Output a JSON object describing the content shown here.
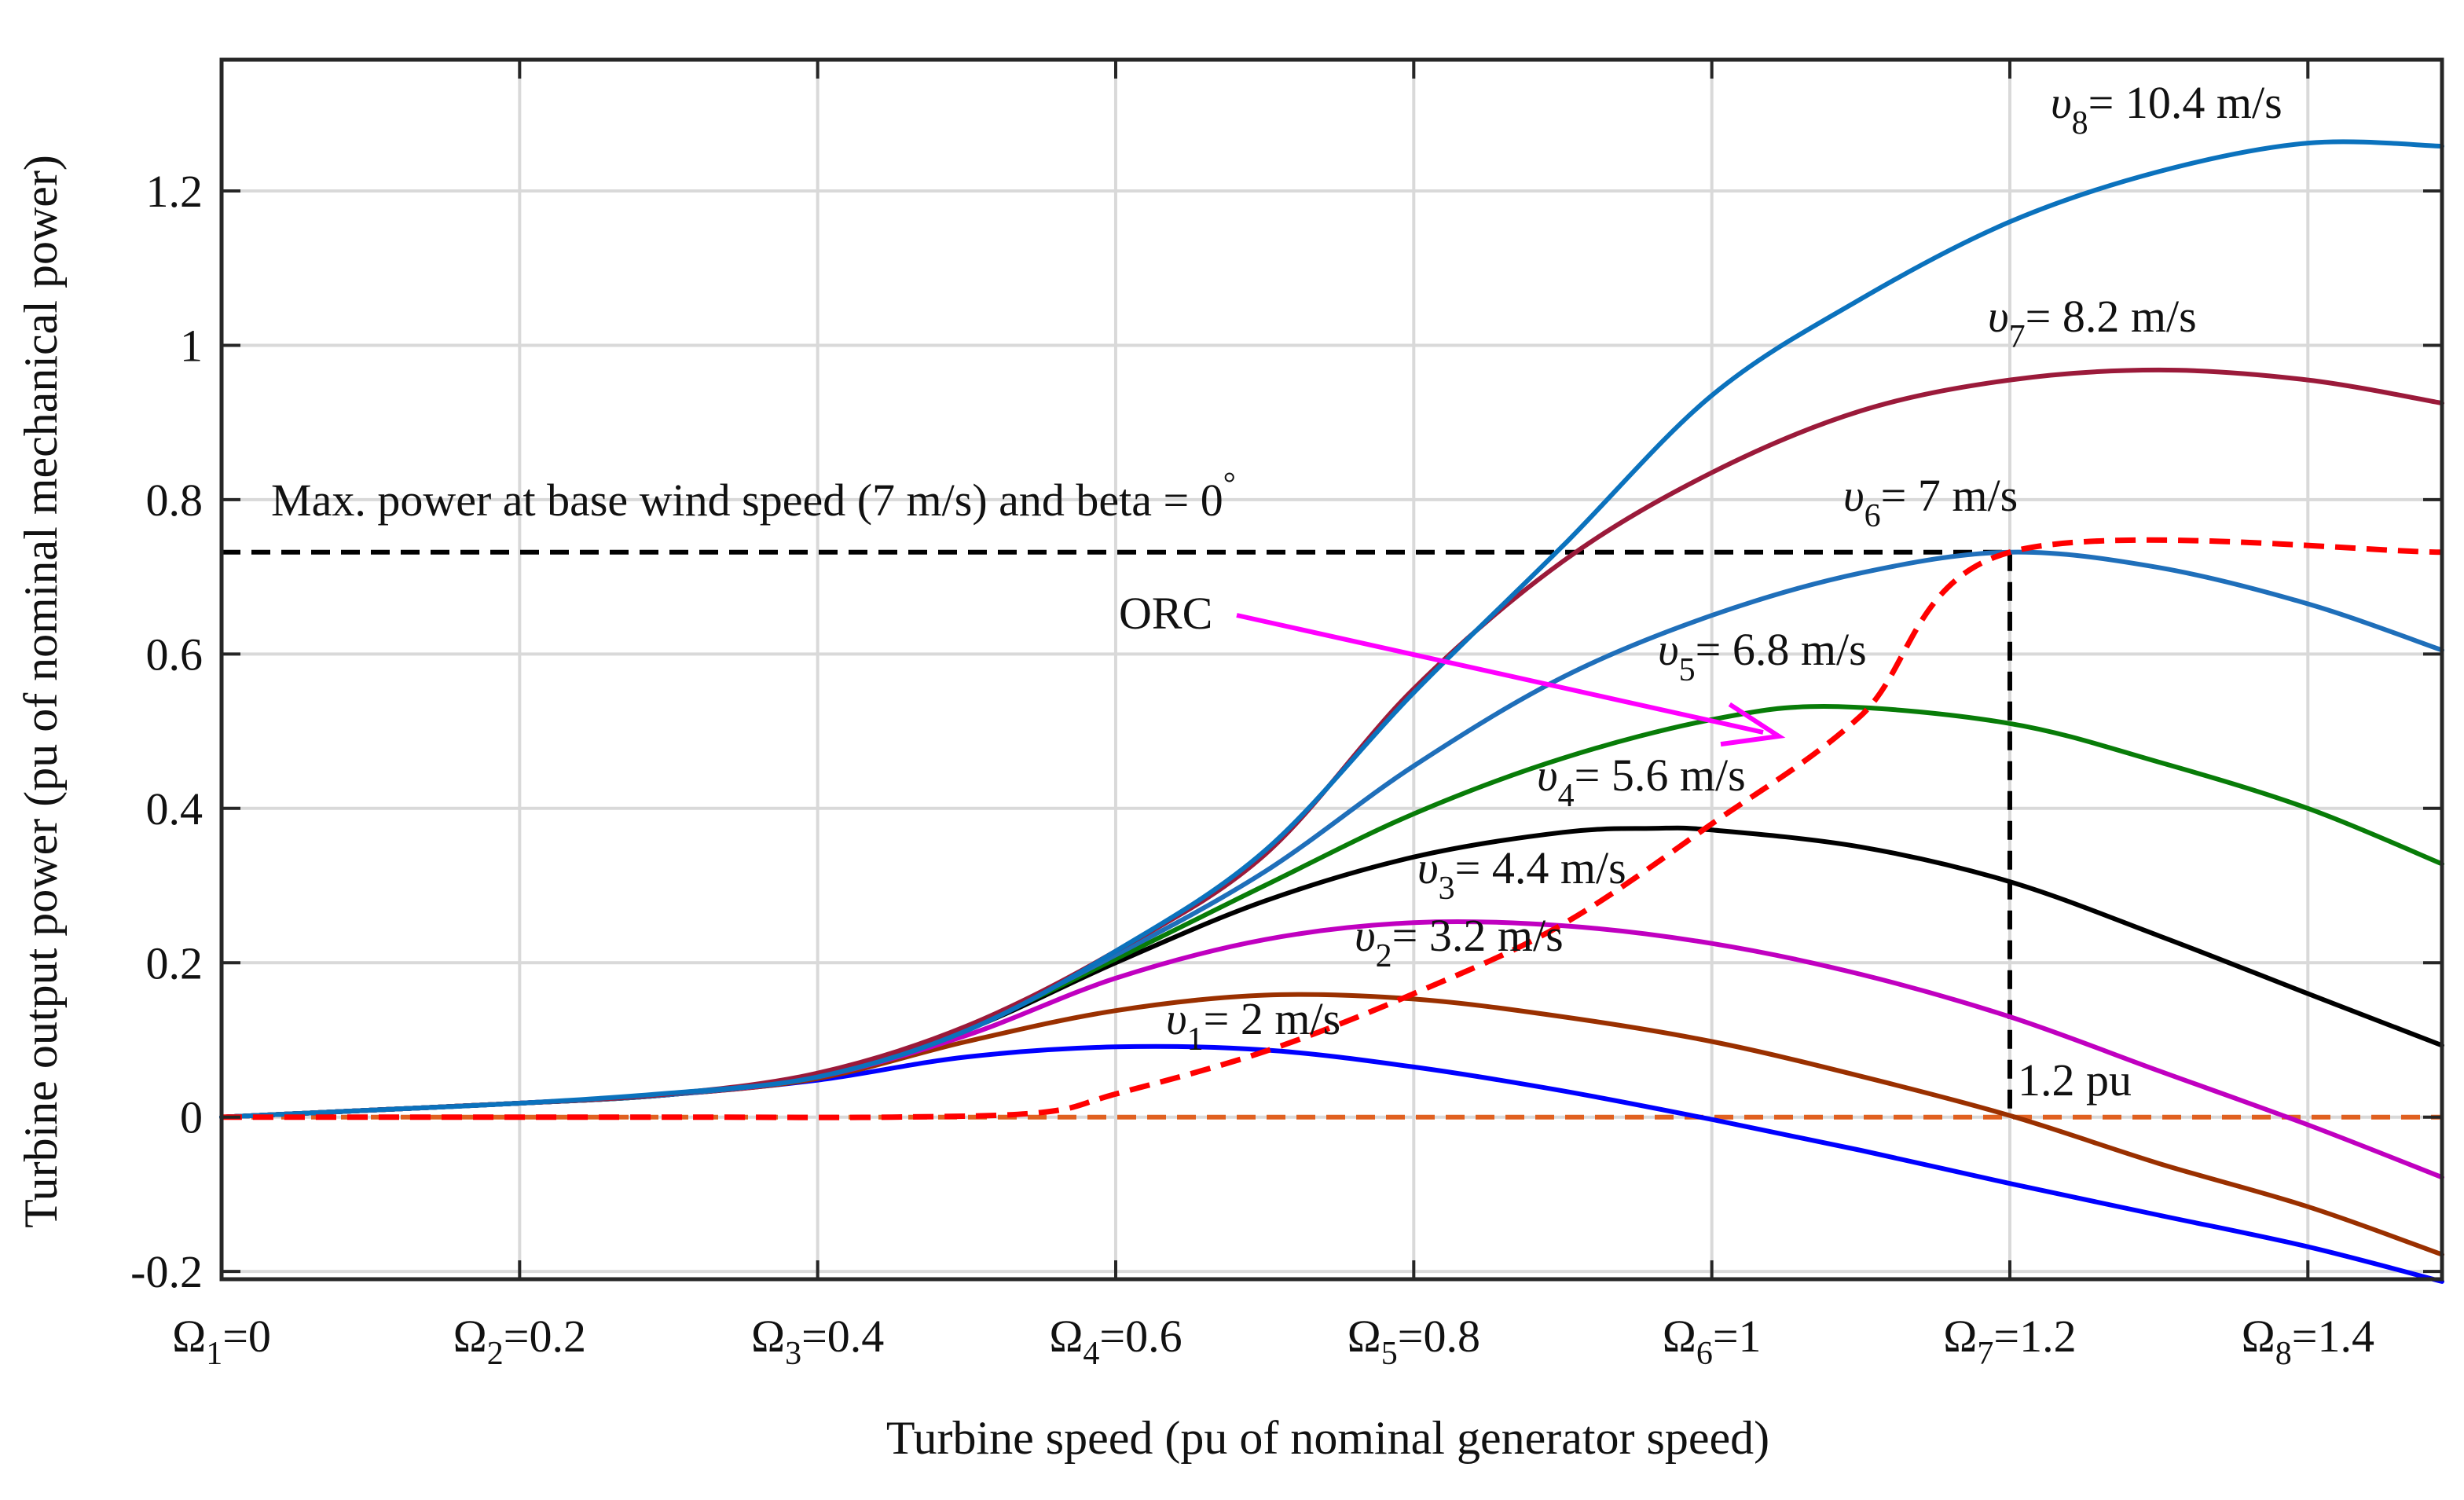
{
  "chart_data": {
    "type": "line",
    "title": "",
    "xlabel": "Turbine speed  (pu of nominal generator speed)",
    "ylabel": "Turbine output power (pu of nominal mechanical power)",
    "xlim": [
      0,
      1.49
    ],
    "ylim": [
      -0.21,
      1.37
    ],
    "grid": true,
    "x_ticks": [
      {
        "value": 0,
        "sym": "Ω",
        "sub": "1",
        "text": "=0"
      },
      {
        "value": 0.2,
        "sym": "Ω",
        "sub": "2",
        "text": "=0.2"
      },
      {
        "value": 0.4,
        "sym": "Ω",
        "sub": "3",
        "text": "=0.4"
      },
      {
        "value": 0.6,
        "sym": "Ω",
        "sub": "4",
        "text": "=0.6"
      },
      {
        "value": 0.8,
        "sym": "Ω",
        "sub": "5",
        "text": "=0.8"
      },
      {
        "value": 1.0,
        "sym": "Ω",
        "sub": "6",
        "text": "=1"
      },
      {
        "value": 1.2,
        "sym": "Ω",
        "sub": "7",
        "text": "=1.2"
      },
      {
        "value": 1.4,
        "sym": "Ω",
        "sub": "8",
        "text": "=1.4"
      }
    ],
    "y_ticks": [
      {
        "value": -0.2,
        "label": "-0.2"
      },
      {
        "value": 0,
        "label": "0"
      },
      {
        "value": 0.2,
        "label": "0.2"
      },
      {
        "value": 0.4,
        "label": "0.4"
      },
      {
        "value": 0.6,
        "label": "0.6"
      },
      {
        "value": 0.8,
        "label": "0.8"
      },
      {
        "value": 1.0,
        "label": "1"
      },
      {
        "value": 1.2,
        "label": "1.2"
      }
    ],
    "series": [
      {
        "name": "v1 = 2 m/s",
        "sym": "υ",
        "sub": "1",
        "text": "= 2 m/s",
        "color": "#0000ff",
        "x": [
          0,
          0.1,
          0.2,
          0.3,
          0.4,
          0.5,
          0.6,
          0.7,
          0.8,
          0.9,
          1.0,
          1.1,
          1.2,
          1.3,
          1.4,
          1.49
        ],
        "y": [
          0,
          0.009,
          0.018,
          0.029,
          0.048,
          0.078,
          0.091,
          0.087,
          0.065,
          0.034,
          -0.003,
          -0.043,
          -0.086,
          -0.127,
          -0.168,
          -0.213
        ]
      },
      {
        "name": "v2 = 3.2 m/s",
        "sym": "υ",
        "sub": "2",
        "text": "= 3.2 m/s",
        "color": "#9a3000",
        "x": [
          0,
          0.1,
          0.2,
          0.3,
          0.4,
          0.5,
          0.6,
          0.7,
          0.8,
          0.9,
          1.0,
          1.1,
          1.2,
          1.3,
          1.4,
          1.49
        ],
        "y": [
          0,
          0.009,
          0.018,
          0.029,
          0.05,
          0.098,
          0.138,
          0.158,
          0.153,
          0.13,
          0.098,
          0.053,
          0.002,
          -0.06,
          -0.116,
          -0.178
        ]
      },
      {
        "name": "v3 = 4.4 m/s",
        "sym": "υ",
        "sub": "3",
        "text": "= 4.4 m/s",
        "color": "#c000c0",
        "x": [
          0,
          0.1,
          0.2,
          0.3,
          0.4,
          0.5,
          0.6,
          0.7,
          0.8,
          0.9,
          1.0,
          1.1,
          1.2,
          1.3,
          1.4,
          1.49
        ],
        "y": [
          0,
          0.009,
          0.018,
          0.029,
          0.052,
          0.106,
          0.18,
          0.23,
          0.252,
          0.248,
          0.225,
          0.185,
          0.13,
          0.06,
          -0.01,
          -0.078
        ]
      },
      {
        "name": "v4 = 5.6 m/s",
        "sym": "υ",
        "sub": "4",
        "text": "= 5.6 m/s",
        "color": "#000000",
        "x": [
          0,
          0.1,
          0.2,
          0.3,
          0.4,
          0.5,
          0.6,
          0.7,
          0.8,
          0.9,
          0.96,
          1.0,
          1.1,
          1.2,
          1.3,
          1.4,
          1.49
        ],
        "y": [
          0,
          0.009,
          0.018,
          0.029,
          0.054,
          0.113,
          0.2,
          0.28,
          0.337,
          0.369,
          0.374,
          0.372,
          0.35,
          0.305,
          0.235,
          0.16,
          0.093
        ]
      },
      {
        "name": "v5 = 6.8 m/s",
        "sym": "υ",
        "sub": "5",
        "text": "= 6.8 m/s",
        "color": "#087c08",
        "x": [
          0,
          0.1,
          0.2,
          0.3,
          0.4,
          0.5,
          0.6,
          0.7,
          0.8,
          0.9,
          1.0,
          1.08,
          1.2,
          1.3,
          1.4,
          1.49
        ],
        "y": [
          0,
          0.009,
          0.018,
          0.029,
          0.054,
          0.115,
          0.205,
          0.3,
          0.393,
          0.465,
          0.515,
          0.532,
          0.51,
          0.46,
          0.4,
          0.328
        ]
      },
      {
        "name": "v6 = 7 m/s",
        "sym": "υ",
        "sub": "6",
        "text": "= 7 m/s",
        "color": "#1f6fba",
        "x": [
          0,
          0.1,
          0.2,
          0.3,
          0.4,
          0.5,
          0.6,
          0.7,
          0.8,
          0.9,
          1.0,
          1.1,
          1.2,
          1.3,
          1.4,
          1.49
        ],
        "y": [
          0,
          0.009,
          0.018,
          0.029,
          0.054,
          0.116,
          0.21,
          0.318,
          0.455,
          0.57,
          0.65,
          0.705,
          0.732,
          0.712,
          0.665,
          0.605
        ]
      },
      {
        "name": "v7 = 8.2 m/s",
        "sym": "υ",
        "sub": "7",
        "text": "= 8.2 m/s",
        "color": "#9b1a3a",
        "x": [
          0,
          0.1,
          0.2,
          0.3,
          0.4,
          0.5,
          0.6,
          0.7,
          0.8,
          0.9,
          1.0,
          1.1,
          1.2,
          1.3,
          1.4,
          1.49
        ],
        "y": [
          0,
          0.009,
          0.018,
          0.03,
          0.057,
          0.118,
          0.215,
          0.34,
          0.555,
          0.72,
          0.835,
          0.915,
          0.955,
          0.968,
          0.955,
          0.925
        ]
      },
      {
        "name": "v8 = 10.4 m/s",
        "sym": "υ",
        "sub": "8",
        "text": "= 10.4 m/s",
        "color": "#0b72bd",
        "x": [
          0,
          0.1,
          0.2,
          0.3,
          0.4,
          0.5,
          0.6,
          0.7,
          0.8,
          0.9,
          1.0,
          1.1,
          1.2,
          1.3,
          1.4,
          1.49
        ],
        "y": [
          0,
          0.009,
          0.018,
          0.031,
          0.052,
          0.112,
          0.215,
          0.345,
          0.55,
          0.74,
          0.935,
          1.06,
          1.16,
          1.225,
          1.262,
          1.258
        ]
      }
    ],
    "orc": {
      "name": "ORC",
      "color": "#ff0000",
      "dashed": true,
      "x": [
        0,
        0.3,
        0.45,
        0.55,
        0.6,
        0.7,
        0.8,
        0.9,
        1.0,
        1.1,
        1.2,
        1.49
      ],
      "y": [
        0,
        0,
        0,
        0.006,
        0.03,
        0.085,
        0.16,
        0.25,
        0.38,
        0.52,
        0.732,
        0.732
      ]
    },
    "reference_lines": [
      {
        "name": "max-power-line",
        "color": "#000000",
        "x": [
          0,
          1.2
        ],
        "y": [
          0.732,
          0.732
        ]
      },
      {
        "name": "speed-marker-line",
        "color": "#000000",
        "x": [
          1.2,
          1.2
        ],
        "y": [
          0.732,
          0.0
        ]
      },
      {
        "name": "zero-line",
        "color": "#e06020",
        "x": [
          0,
          1.49
        ],
        "y": [
          0,
          0
        ]
      }
    ],
    "annotations": {
      "max_power": {
        "text": "Max. power at base wind speed (7 m/s) and beta = 0",
        "sup": "°"
      },
      "speed_marker": "1.2 pu",
      "orc_label": "ORC",
      "orc_arrow_color": "#ff00ff"
    }
  }
}
